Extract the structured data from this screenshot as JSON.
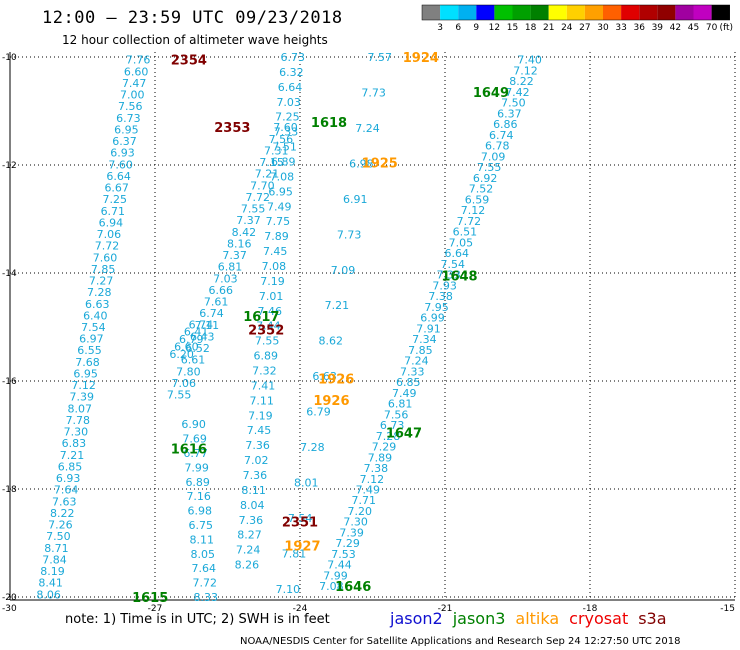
{
  "header": {
    "title": "12:00 – 23:59 UTC 09/23/2018",
    "subtitle": "12 hour collection of altimeter wave heights"
  },
  "footer": {
    "note": "note:  1) Time is in UTC;  2) SWH is in feet",
    "credit": "NOAA/NESDIS Center for Satellite Applications and Research     Sep 24 12:27:50 UTC 2018"
  },
  "legend_satellites": [
    {
      "name": "jason2",
      "color": "#1010d0"
    },
    {
      "name": "jason3",
      "color": "#008000"
    },
    {
      "name": "altika",
      "color": "#ff9900"
    },
    {
      "name": "cryosat",
      "color": "#ee0000"
    },
    {
      "name": "s3a",
      "color": "#800000"
    }
  ],
  "colorbar": {
    "unit": "(ft)",
    "ticks": [
      "3",
      "6",
      "9",
      "12",
      "15",
      "18",
      "21",
      "24",
      "27",
      "30",
      "33",
      "36",
      "39",
      "42",
      "45",
      "70"
    ],
    "colors": [
      "#808080",
      "#00e0ff",
      "#00b0f0",
      "#0000ff",
      "#00c000",
      "#00a000",
      "#008000",
      "#ffff00",
      "#ffd000",
      "#ffa000",
      "#ff6000",
      "#e00000",
      "#b00000",
      "#900000",
      "#a000a0",
      "#c000c0",
      "#000000"
    ]
  },
  "chart_data": {
    "type": "scatter",
    "xlim": [
      -30,
      -15
    ],
    "ylim": [
      -20.2,
      -10
    ],
    "x_ticks": [
      "-30",
      "-27",
      "-24",
      "-21",
      "-18",
      "-15"
    ],
    "y_ticks": [
      "-10",
      "-12",
      "-14",
      "-16",
      "-18",
      "-20"
    ],
    "swh_color": "#1aa8d8",
    "time_tags": [
      {
        "label": "2354",
        "x": -26.3,
        "y": -10.05,
        "color": "#800000"
      },
      {
        "label": "2353",
        "x": -25.4,
        "y": -11.3,
        "color": "#800000"
      },
      {
        "label": "2352",
        "x": -24.7,
        "y": -15.05,
        "color": "#800000"
      },
      {
        "label": "2351",
        "x": -24.0,
        "y": -18.6,
        "color": "#800000"
      },
      {
        "label": "1924",
        "x": -21.5,
        "y": -10.0,
        "color": "#ff9900"
      },
      {
        "label": "1925",
        "x": -22.35,
        "y": -11.95,
        "color": "#ff9900"
      },
      {
        "label": "1926",
        "x": -23.25,
        "y": -15.95,
        "color": "#ff9900"
      },
      {
        "label": "1926",
        "x": -23.35,
        "y": -16.35,
        "color": "#ff9900"
      },
      {
        "label": "1927",
        "x": -23.95,
        "y": -19.05,
        "color": "#ff9900"
      },
      {
        "label": "1649",
        "x": -20.05,
        "y": -10.65,
        "color": "#008000"
      },
      {
        "label": "1648",
        "x": -20.7,
        "y": -14.05,
        "color": "#008000"
      },
      {
        "label": "1647",
        "x": -21.85,
        "y": -16.95,
        "color": "#008000"
      },
      {
        "label": "1646",
        "x": -22.9,
        "y": -19.8,
        "color": "#008000"
      },
      {
        "label": "1618",
        "x": -23.4,
        "y": -11.2,
        "color": "#008000"
      },
      {
        "label": "1617",
        "x": -24.8,
        "y": -14.8,
        "color": "#008000"
      },
      {
        "label": "1616",
        "x": -26.3,
        "y": -17.25,
        "color": "#008000"
      },
      {
        "label": "1615",
        "x": -27.1,
        "y": -20.0,
        "color": "#008000"
      }
    ],
    "tracks": [
      {
        "id": "cryosat_2351_2354",
        "start": [
          -27.35,
          -10.05
        ],
        "end": [
          -29.2,
          -19.95
        ],
        "values": [
          "7.76",
          "6.60",
          "7.47",
          "7.00",
          "7.56",
          "6.73",
          "6.95",
          "6.37",
          "6.93",
          "7.60",
          "6.64",
          "6.67",
          "7.25",
          "6.71",
          "6.94",
          "7.06",
          "7.72",
          "7.60",
          "7.85",
          "7.27",
          "7.28",
          "6.63",
          "6.40",
          "7.54",
          "6.97",
          "6.55",
          "7.68",
          "6.95",
          "7.12",
          "7.39",
          "8.07",
          "7.78",
          "7.30",
          "6.83",
          "7.21",
          "6.85",
          "6.93",
          "7.64",
          "7.63",
          "8.22",
          "7.26",
          "7.50",
          "8.71",
          "7.84",
          "8.19",
          "8.41",
          "8.06"
        ]
      },
      {
        "id": "cryosat_center",
        "start": [
          -26.05,
          -14.95
        ],
        "end": [
          -26.45,
          -15.5
        ],
        "values": [
          "6.74",
          "6.41",
          "6.79",
          "6.60",
          "6.20"
        ]
      },
      {
        "id": "jason3_1615_1618",
        "start": [
          -24.3,
          -11.3
        ],
        "end": [
          -26.5,
          -16.25
        ],
        "values": [
          "7.60",
          "7.56",
          "7.31",
          "7.15",
          "7.21",
          "7.70",
          "7.72",
          "7.55",
          "7.37",
          "8.42",
          "8.16",
          "7.37",
          "6.81",
          "7.03",
          "6.66",
          "7.61",
          "6.74",
          "7.11",
          "6.43",
          "6.52",
          "6.61",
          "7.80",
          "7.06",
          "7.55"
        ]
      },
      {
        "id": "jason3_lower",
        "start": [
          -26.2,
          -16.8
        ],
        "end": [
          -25.95,
          -20.0
        ],
        "values": [
          "6.90",
          "7.69",
          "6.77",
          "7.99",
          "6.89",
          "7.16",
          "6.98",
          "6.75",
          "8.11",
          "8.05",
          "7.64",
          "7.72",
          "8.33"
        ]
      },
      {
        "id": "jason3_mid",
        "start": [
          -24.15,
          -10.0
        ],
        "end": [
          -25.1,
          -19.4
        ],
        "values": [
          "6.73",
          "6.32",
          "6.64",
          "7.03",
          "7.25",
          "7.33",
          "7.51",
          "6.89",
          "7.08",
          "6.95",
          "7.49",
          "7.75",
          "7.89",
          "7.45",
          "7.08",
          "7.19",
          "7.01",
          "7.46",
          "7.44",
          "7.55",
          "6.89",
          "7.32",
          "7.41",
          "7.11",
          "7.19",
          "7.45",
          "7.36",
          "7.02",
          "7.36",
          "8.11",
          "8.04",
          "7.36",
          "8.27",
          "7.24",
          "8.26"
        ]
      },
      {
        "id": "altika_1924_1927",
        "start": [
          -22.35,
          -10.0
        ],
        "end": [
          -24.25,
          -19.85
        ],
        "values": [
          "7.57",
          "7.73",
          "7.24",
          "6.98",
          "6.91",
          "7.73",
          "7.09",
          "7.21",
          "8.62",
          "6.63",
          "6.79",
          "7.28",
          "8.01",
          "7.54",
          "7.81",
          "7.10"
        ]
      },
      {
        "id": "jason3_1646_1649",
        "start": [
          -19.25,
          -10.05
        ],
        "end": [
          -23.35,
          -19.8
        ],
        "values": [
          "7.40",
          "7.12",
          "8.22",
          "7.42",
          "7.50",
          "6.37",
          "6.86",
          "6.74",
          "6.78",
          "7.09",
          "7.55",
          "6.92",
          "7.52",
          "6.59",
          "7.12",
          "7.72",
          "6.51",
          "7.05",
          "6.64",
          "7.54",
          "7.33",
          "7.93",
          "7.38",
          "7.95",
          "6.99",
          "7.91",
          "7.34",
          "7.85",
          "7.24",
          "7.33",
          "6.85",
          "7.49",
          "6.81",
          "7.56",
          "6.73",
          "7.28",
          "7.29",
          "7.89",
          "7.38",
          "7.12",
          "7.49",
          "7.71",
          "7.20",
          "7.30",
          "7.39",
          "7.29",
          "7.53",
          "7.44",
          "7.99",
          "7.08"
        ]
      }
    ]
  }
}
